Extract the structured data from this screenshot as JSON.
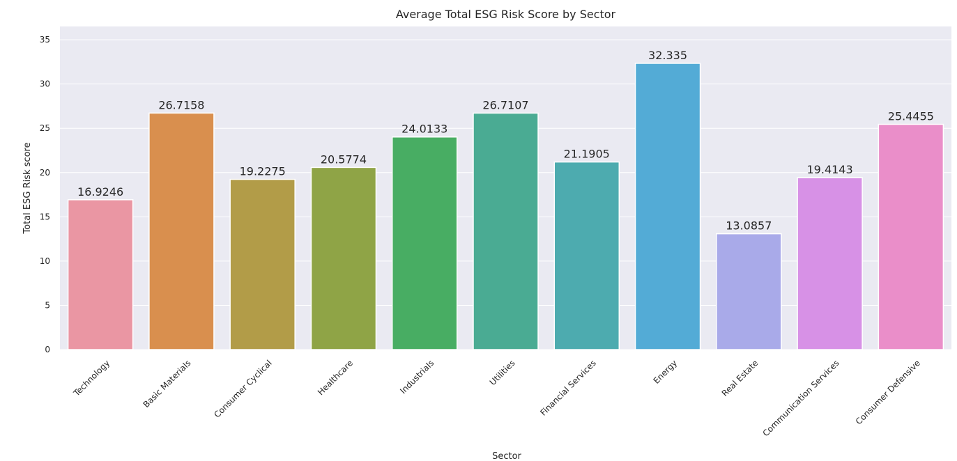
{
  "chart_data": {
    "type": "bar",
    "title": "Average  Total ESG Risk Score by Sector",
    "xlabel": "Sector",
    "ylabel": "Total ESG Risk score",
    "ylim": [
      0,
      36.5
    ],
    "yticks": [
      0,
      5,
      10,
      15,
      20,
      25,
      30,
      35
    ],
    "grid": true,
    "legend": "none",
    "categories": [
      "Technology",
      "Basic Materials",
      "Consumer Cyclical",
      "Healthcare",
      "Industrials",
      "Utilities",
      "Financial Services",
      "Energy",
      "Real Estate",
      "Communication Services",
      "Consumer Defensive"
    ],
    "values": [
      16.9246,
      26.7158,
      19.2275,
      20.5774,
      24.0133,
      26.7107,
      21.1905,
      32.335,
      13.0857,
      19.4143,
      25.4455
    ],
    "value_labels": [
      "16.9246",
      "26.7158",
      "19.2275",
      "20.5774",
      "24.0133",
      "26.7107",
      "21.1905",
      "32.335",
      "13.0857",
      "19.4143",
      "25.4455"
    ],
    "colors": [
      "#ea96a3",
      "#d98f4e",
      "#b29c48",
      "#8fa446",
      "#48ad63",
      "#4aab93",
      "#4dabaf",
      "#53abd6",
      "#a9aae9",
      "#d791e6",
      "#ea8ec9"
    ],
    "background": "#eaeaf2"
  }
}
